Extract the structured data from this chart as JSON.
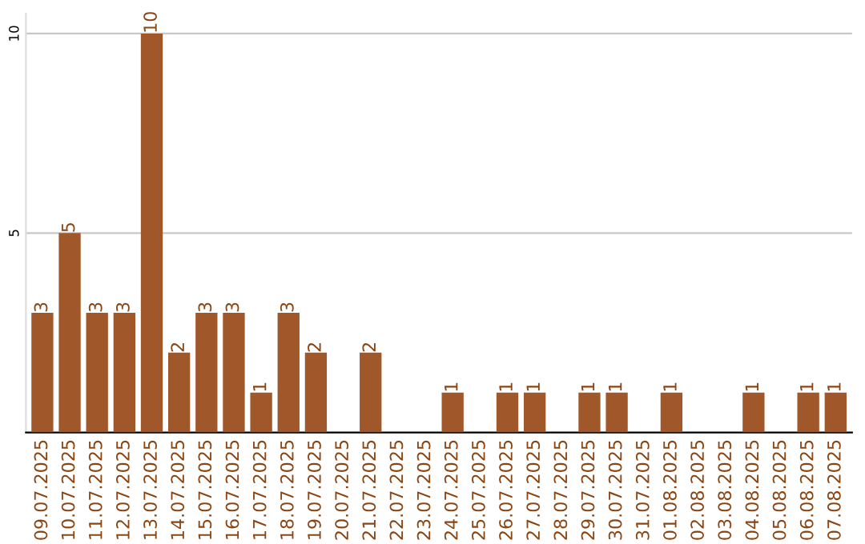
{
  "chart_data": {
    "type": "bar",
    "categories": [
      "09.07.2025",
      "10.07.2025",
      "11.07.2025",
      "12.07.2025",
      "13.07.2025",
      "14.07.2025",
      "15.07.2025",
      "16.07.2025",
      "17.07.2025",
      "18.07.2025",
      "19.07.2025",
      "20.07.2025",
      "21.07.2025",
      "22.07.2025",
      "23.07.2025",
      "24.07.2025",
      "25.07.2025",
      "26.07.2025",
      "27.07.2025",
      "28.07.2025",
      "29.07.2025",
      "30.07.2025",
      "31.07.2025",
      "01.08.2025",
      "02.08.2025",
      "03.08.2025",
      "04.08.2025",
      "05.08.2025",
      "06.08.2025",
      "07.08.2025"
    ],
    "values": [
      3,
      5,
      3,
      3,
      10,
      2,
      3,
      3,
      1,
      3,
      2,
      0,
      2,
      0,
      0,
      1,
      0,
      1,
      1,
      0,
      1,
      1,
      0,
      1,
      0,
      0,
      1,
      0,
      1,
      1
    ],
    "value_labels": [
      "3",
      "5",
      "3",
      "3",
      "10",
      "2",
      "3",
      "3",
      "1",
      "3",
      "2",
      null,
      "2",
      null,
      null,
      "1",
      null,
      "1",
      "1",
      null,
      "1",
      "1",
      null,
      "1",
      null,
      null,
      "1",
      null,
      "1",
      "1"
    ],
    "color": "#a0572a",
    "ylim": [
      0,
      10.5
    ],
    "yticks": [
      5,
      10
    ],
    "grid": "y"
  }
}
